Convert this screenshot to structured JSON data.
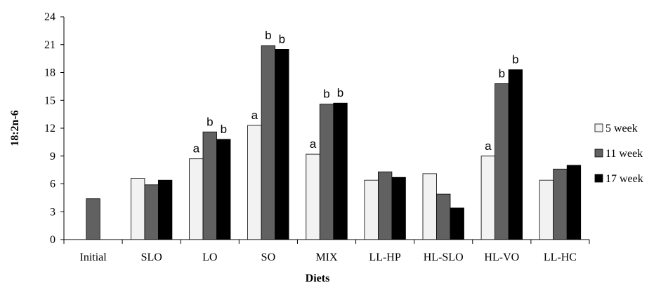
{
  "chart_data": {
    "type": "bar",
    "title": "",
    "xlabel": "Diets",
    "ylabel": "18:2n-6",
    "ylim": [
      0,
      24
    ],
    "yticks": [
      "0",
      "3",
      "6",
      "9",
      "12",
      "15",
      "18",
      "21",
      "24"
    ],
    "categories": [
      "Initial",
      "SLO",
      "LO",
      "SO",
      "MIX",
      "LL-HP",
      "HL-SLO",
      "HL-VO",
      "LL-HC"
    ],
    "series": [
      {
        "name": "5 week",
        "color": "#f2f2f2",
        "values": [
          null,
          6.6,
          8.7,
          12.3,
          9.2,
          6.4,
          7.1,
          9.0,
          6.4
        ],
        "labels": [
          "",
          "",
          "a",
          "a",
          "a",
          "",
          "",
          "a",
          ""
        ]
      },
      {
        "name": "11 week",
        "color": "#616161",
        "values": [
          4.4,
          5.9,
          11.6,
          20.9,
          14.6,
          7.3,
          4.9,
          16.8,
          7.6
        ],
        "labels": [
          "",
          "",
          "b",
          "b",
          "b",
          "",
          "",
          "b",
          ""
        ]
      },
      {
        "name": "17 week",
        "color": "#000000",
        "values": [
          null,
          6.4,
          10.8,
          20.5,
          14.7,
          6.7,
          3.4,
          18.3,
          8.0
        ],
        "labels": [
          "",
          "",
          "b",
          "b",
          "b",
          "",
          "",
          "b",
          ""
        ]
      }
    ],
    "grid": false,
    "legend_position": "right"
  }
}
